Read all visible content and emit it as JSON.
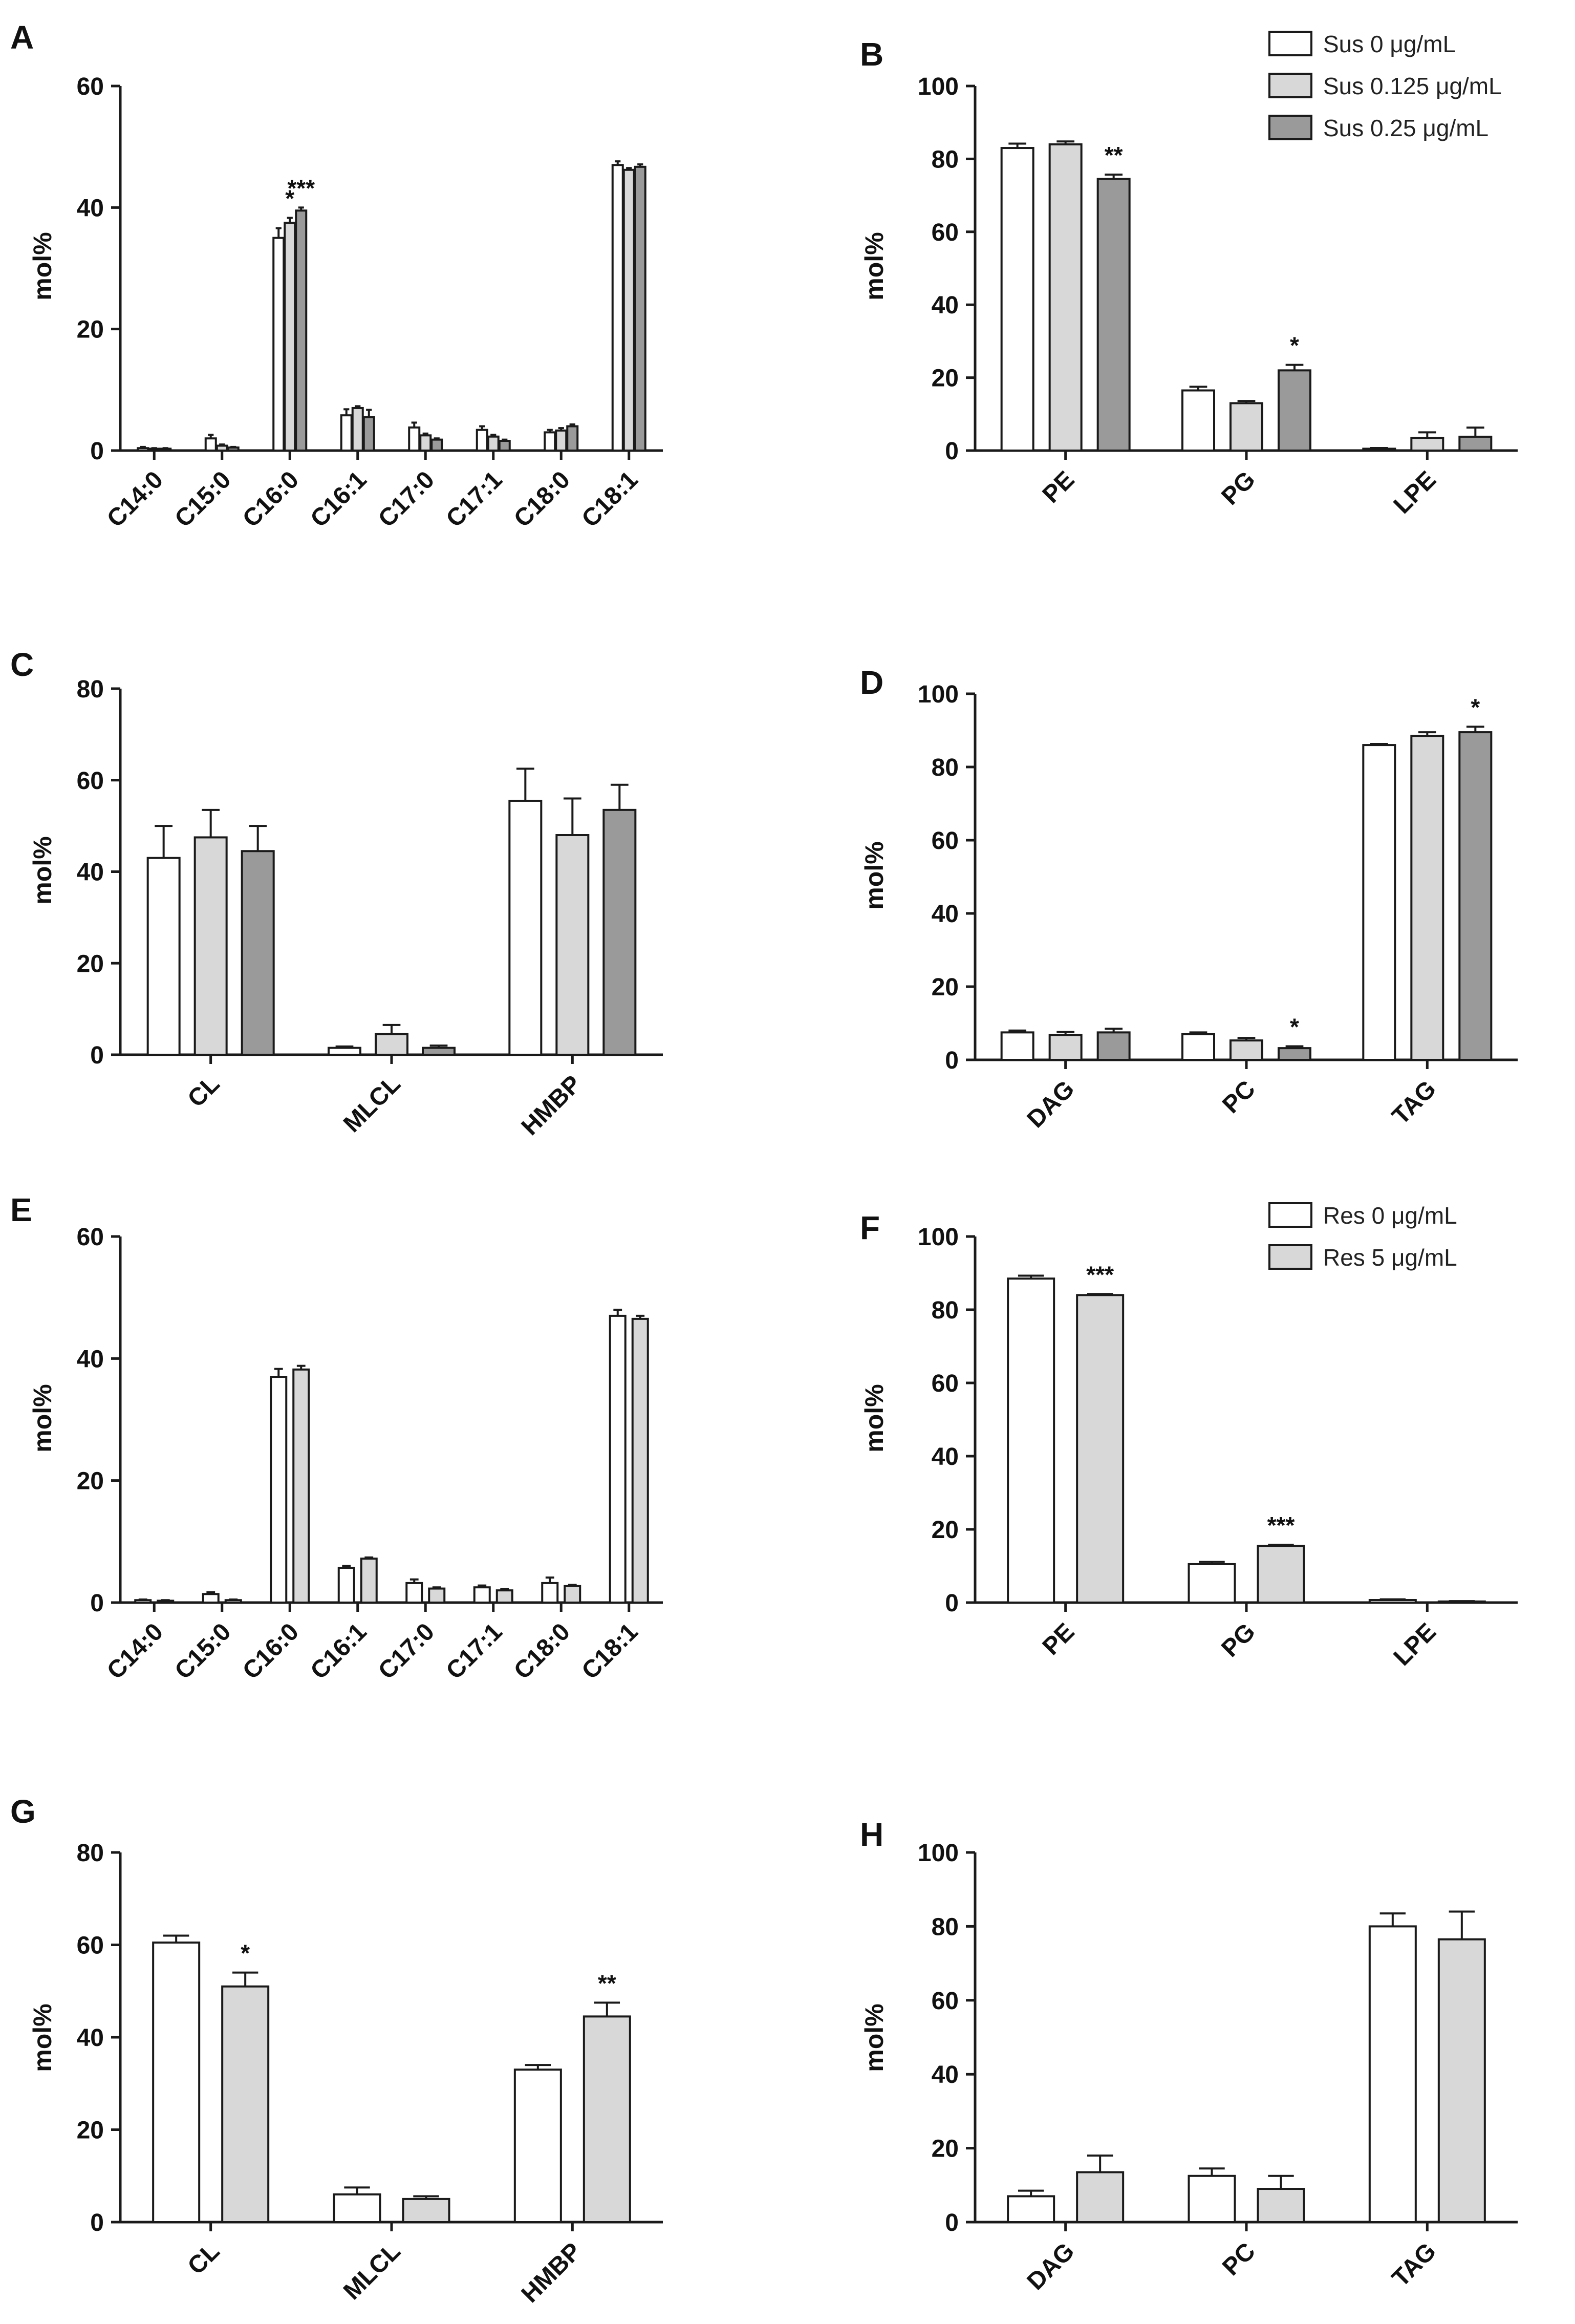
{
  "legend_sus": [
    "Sus 0 μg/mL",
    "Sus 0.125 μg/mL",
    "Sus 0.25 μg/mL"
  ],
  "legend_res": [
    "Res 0 μg/mL",
    "Res 5 μg/mL"
  ],
  "colors": {
    "white": "#ffffff",
    "light": "#d8d8d8",
    "dark": "#9a9a9a",
    "stroke": "#1a1a1a"
  },
  "chart_data": [
    {
      "panel": "A",
      "type": "bar",
      "ylabel": "mol%",
      "ylim": [
        0,
        60
      ],
      "yticks": [
        0,
        20,
        40,
        60
      ],
      "categories": [
        "C14:0",
        "C15:0",
        "C16:0",
        "C16:1",
        "C17:0",
        "C17:1",
        "C18:0",
        "C18:1"
      ],
      "series": [
        {
          "legend_index": 0,
          "values": [
            0.4,
            2.0,
            35.0,
            5.8,
            3.8,
            3.4,
            3.0,
            47.0
          ],
          "errors": [
            0.2,
            0.6,
            1.6,
            1.0,
            0.8,
            0.6,
            0.4,
            0.6
          ]
        },
        {
          "legend_index": 1,
          "values": [
            0.3,
            0.8,
            37.5,
            7.0,
            2.5,
            2.3,
            3.3,
            46.2
          ],
          "errors": [
            0.1,
            0.2,
            0.8,
            0.3,
            0.3,
            0.3,
            0.4,
            0.3
          ]
        },
        {
          "legend_index": 2,
          "values": [
            0.3,
            0.5,
            39.5,
            5.5,
            1.8,
            1.6,
            4.0,
            46.7
          ],
          "errors": [
            0.1,
            0.1,
            0.5,
            1.2,
            0.2,
            0.2,
            0.3,
            0.4
          ]
        }
      ],
      "annotations": [
        {
          "category": 2,
          "series": 1,
          "text": "*"
        },
        {
          "category": 2,
          "series": 2,
          "text": "***"
        }
      ]
    },
    {
      "panel": "B",
      "type": "bar",
      "ylabel": "mol%",
      "ylim": [
        0,
        100
      ],
      "yticks": [
        0,
        20,
        40,
        60,
        80,
        100
      ],
      "categories": [
        "PE",
        "PG",
        "LPE"
      ],
      "legend": "sus",
      "series": [
        {
          "legend_index": 0,
          "values": [
            83.0,
            16.5,
            0.5
          ],
          "errors": [
            1.2,
            1.0,
            0.2
          ]
        },
        {
          "legend_index": 1,
          "values": [
            84.0,
            13.0,
            3.5
          ],
          "errors": [
            0.8,
            0.6,
            1.5
          ]
        },
        {
          "legend_index": 2,
          "values": [
            74.5,
            22.0,
            3.8
          ],
          "errors": [
            1.2,
            1.5,
            2.5
          ]
        }
      ],
      "annotations": [
        {
          "category": 0,
          "series": 2,
          "text": "**"
        },
        {
          "category": 1,
          "series": 2,
          "text": "*"
        }
      ]
    },
    {
      "panel": "C",
      "type": "bar",
      "ylabel": "mol%",
      "ylim": [
        0,
        80
      ],
      "yticks": [
        0,
        20,
        40,
        60,
        80
      ],
      "categories": [
        "CL",
        "MLCL",
        "HMBP"
      ],
      "series": [
        {
          "legend_index": 0,
          "values": [
            43.0,
            1.5,
            55.5
          ],
          "errors": [
            7.0,
            0.3,
            7.0
          ]
        },
        {
          "legend_index": 1,
          "values": [
            47.5,
            4.5,
            48.0
          ],
          "errors": [
            6.0,
            2.0,
            8.0
          ]
        },
        {
          "legend_index": 2,
          "values": [
            44.5,
            1.5,
            53.5
          ],
          "errors": [
            5.5,
            0.5,
            5.5
          ]
        }
      ],
      "annotations": []
    },
    {
      "panel": "D",
      "type": "bar",
      "ylabel": "mol%",
      "ylim": [
        0,
        100
      ],
      "yticks": [
        0,
        20,
        40,
        60,
        80,
        100
      ],
      "categories": [
        "DAG",
        "PC",
        "TAG"
      ],
      "series": [
        {
          "legend_index": 0,
          "values": [
            7.5,
            7.0,
            86.0
          ],
          "errors": [
            0.5,
            0.5,
            0.3
          ]
        },
        {
          "legend_index": 1,
          "values": [
            6.8,
            5.3,
            88.5
          ],
          "errors": [
            0.8,
            0.7,
            1.0
          ]
        },
        {
          "legend_index": 2,
          "values": [
            7.5,
            3.2,
            89.5
          ],
          "errors": [
            1.0,
            0.5,
            1.5
          ]
        }
      ],
      "annotations": [
        {
          "category": 1,
          "series": 2,
          "text": "*"
        },
        {
          "category": 2,
          "series": 2,
          "text": "*"
        }
      ]
    },
    {
      "panel": "E",
      "type": "bar",
      "ylabel": "mol%",
      "ylim": [
        0,
        60
      ],
      "yticks": [
        0,
        20,
        40,
        60
      ],
      "categories": [
        "C14:0",
        "C15:0",
        "C16:0",
        "C16:1",
        "C17:0",
        "C17:1",
        "C18:0",
        "C18:1"
      ],
      "series": [
        {
          "legend_index": 0,
          "values": [
            0.4,
            1.4,
            37.0,
            5.7,
            3.2,
            2.5,
            3.2,
            47.0
          ],
          "errors": [
            0.1,
            0.3,
            1.3,
            0.3,
            0.6,
            0.3,
            0.9,
            1.0
          ]
        },
        {
          "legend_index": 1,
          "values": [
            0.3,
            0.4,
            38.2,
            7.2,
            2.3,
            2.0,
            2.7,
            46.5
          ],
          "errors": [
            0.1,
            0.1,
            0.6,
            0.2,
            0.2,
            0.2,
            0.2,
            0.5
          ]
        }
      ],
      "annotations": []
    },
    {
      "panel": "F",
      "type": "bar",
      "ylabel": "mol%",
      "ylim": [
        0,
        100
      ],
      "yticks": [
        0,
        20,
        40,
        60,
        80,
        100
      ],
      "categories": [
        "PE",
        "PG",
        "LPE"
      ],
      "legend": "res",
      "series": [
        {
          "legend_index": 0,
          "values": [
            88.5,
            10.5,
            0.7
          ],
          "errors": [
            0.8,
            0.6,
            0.2
          ]
        },
        {
          "legend_index": 1,
          "values": [
            84.0,
            15.5,
            0.3
          ],
          "errors": [
            0.3,
            0.3,
            0.1
          ]
        }
      ],
      "annotations": [
        {
          "category": 0,
          "series": 1,
          "text": "***"
        },
        {
          "category": 1,
          "series": 1,
          "text": "***"
        }
      ]
    },
    {
      "panel": "G",
      "type": "bar",
      "ylabel": "mol%",
      "ylim": [
        0,
        80
      ],
      "yticks": [
        0,
        20,
        40,
        60,
        80
      ],
      "categories": [
        "CL",
        "MLCL",
        "HMBP"
      ],
      "series": [
        {
          "legend_index": 0,
          "values": [
            60.5,
            6.0,
            33.0
          ],
          "errors": [
            1.5,
            1.5,
            1.0
          ]
        },
        {
          "legend_index": 1,
          "values": [
            51.0,
            5.0,
            44.5
          ],
          "errors": [
            3.0,
            0.6,
            3.0
          ]
        }
      ],
      "annotations": [
        {
          "category": 0,
          "series": 1,
          "text": "*"
        },
        {
          "category": 2,
          "series": 1,
          "text": "**"
        }
      ]
    },
    {
      "panel": "H",
      "type": "bar",
      "ylabel": "mol%",
      "ylim": [
        0,
        100
      ],
      "yticks": [
        0,
        20,
        40,
        60,
        80,
        100
      ],
      "categories": [
        "DAG",
        "PC",
        "TAG"
      ],
      "series": [
        {
          "legend_index": 0,
          "values": [
            7.0,
            12.5,
            80.0
          ],
          "errors": [
            1.5,
            2.0,
            3.5
          ]
        },
        {
          "legend_index": 1,
          "values": [
            13.5,
            9.0,
            76.5
          ],
          "errors": [
            4.5,
            3.5,
            7.5
          ]
        }
      ],
      "annotations": []
    }
  ]
}
